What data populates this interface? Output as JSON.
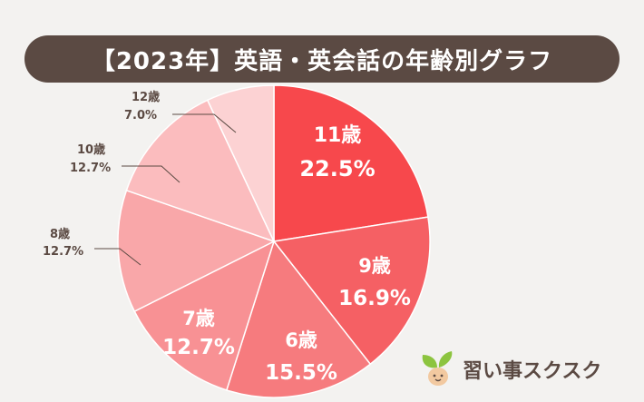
{
  "chart_data": {
    "type": "pie",
    "title": "【2023年】英語・英会話の年齢別グラフ",
    "slices": [
      {
        "label": "11歳",
        "value": 22.5,
        "value_text": "22.5%",
        "color": "#f7484c",
        "label_style": "inside"
      },
      {
        "label": "9歳",
        "value": 16.9,
        "value_text": "16.9%",
        "color": "#f56064",
        "label_style": "inside"
      },
      {
        "label": "6歳",
        "value": 15.5,
        "value_text": "15.5%",
        "color": "#f67b7e",
        "label_style": "inside"
      },
      {
        "label": "7歳",
        "value": 12.7,
        "value_text": "12.7%",
        "color": "#f89194",
        "label_style": "inside"
      },
      {
        "label": "8歳",
        "value": 12.7,
        "value_text": "12.7%",
        "color": "#f9a7a9",
        "label_style": "outside"
      },
      {
        "label": "10歳",
        "value": 12.7,
        "value_text": "12.7%",
        "color": "#fbbcbe",
        "label_style": "outside"
      },
      {
        "label": "12歳",
        "value": 7.0,
        "value_text": "7.0%",
        "color": "#fcd2d3",
        "label_style": "outside"
      }
    ]
  },
  "brand": {
    "name": "習い事スクスク",
    "icon": "sprout-mascot-icon",
    "leaf_color": "#8cc43f",
    "face_color": "#f2c9a0"
  }
}
